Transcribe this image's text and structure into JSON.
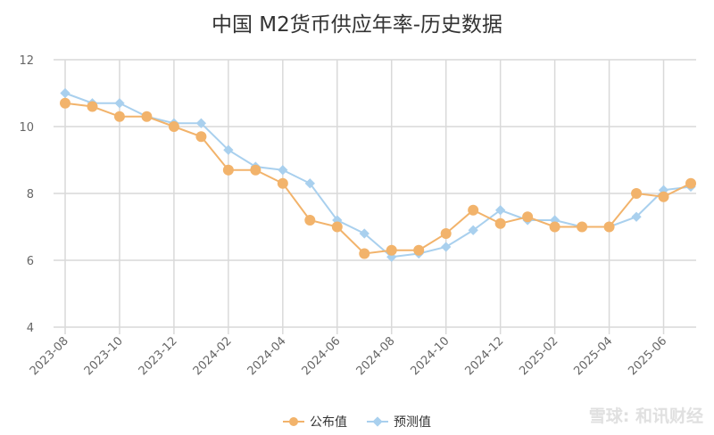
{
  "chart_data": {
    "type": "line",
    "title": "中国 M2货币供应年率-历史数据",
    "categories": [
      "2023-08",
      "2023-09",
      "2023-10",
      "2023-11",
      "2023-12",
      "2024-01",
      "2024-02",
      "2024-03",
      "2024-04",
      "2024-05",
      "2024-06",
      "2024-07",
      "2024-08",
      "2024-09",
      "2024-10",
      "2024-11",
      "2024-12",
      "2025-01",
      "2025-02",
      "2025-03",
      "2025-04",
      "2025-05",
      "2025-06",
      "2025-07"
    ],
    "x_tick_labels": [
      "2023-08",
      "2023-10",
      "2023-12",
      "2024-02",
      "2024-04",
      "2024-06",
      "2024-08",
      "2024-10",
      "2024-12",
      "2025-02",
      "2025-04",
      "2025-06"
    ],
    "y_ticks": [
      4,
      6,
      8,
      10,
      12
    ],
    "ylim": [
      4,
      12
    ],
    "grid": true,
    "legend": "bottom",
    "series": [
      {
        "name": "公布值",
        "color": "#f2b36b",
        "marker": "circle",
        "values": [
          10.7,
          10.6,
          10.3,
          10.3,
          10.0,
          9.7,
          8.7,
          8.7,
          8.3,
          7.2,
          7.0,
          6.2,
          6.3,
          6.3,
          6.8,
          7.5,
          7.1,
          7.3,
          7.0,
          7.0,
          7.0,
          8.0,
          7.9,
          8.3
        ]
      },
      {
        "name": "预测值",
        "color": "#a9d0ee",
        "marker": "diamond",
        "values": [
          11.0,
          10.7,
          10.7,
          10.3,
          10.1,
          10.1,
          9.3,
          8.8,
          8.7,
          8.3,
          7.2,
          6.8,
          6.1,
          6.2,
          6.4,
          6.9,
          7.5,
          7.2,
          7.2,
          7.0,
          7.0,
          7.3,
          8.1,
          8.2
        ]
      }
    ]
  },
  "watermark": "雪球: 和讯财经"
}
